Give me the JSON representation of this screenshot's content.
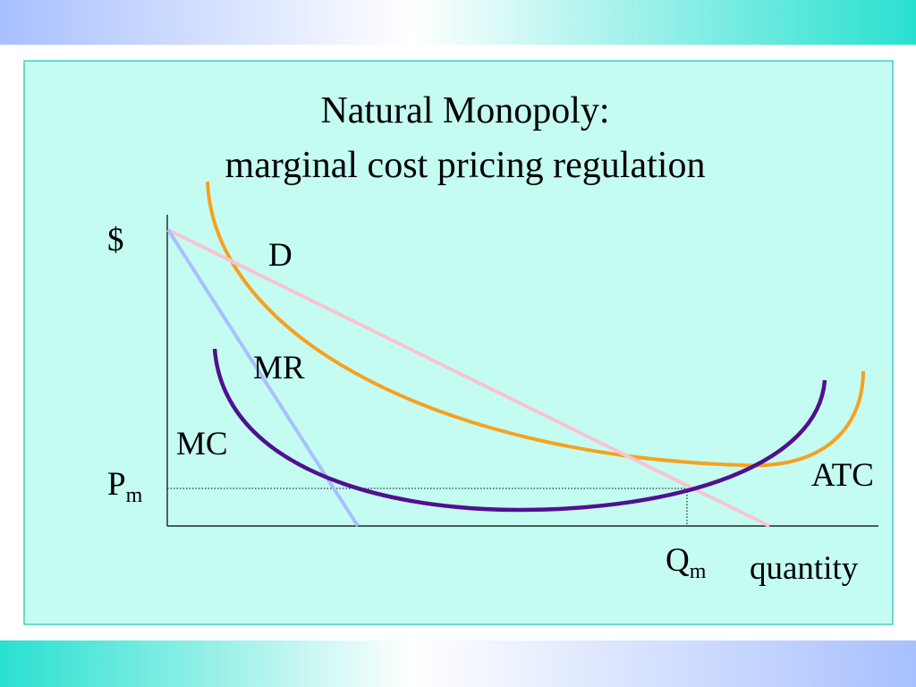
{
  "title": {
    "line1": "Natural Monopoly:",
    "line2": "marginal cost pricing regulation"
  },
  "labels": {
    "y_axis": "$",
    "demand": "D",
    "marginal_revenue": "MR",
    "marginal_cost": "MC",
    "price": {
      "main": "P",
      "sub": "m"
    },
    "atc": "ATC",
    "quantity_mark": {
      "main": "Q",
      "sub": "m"
    },
    "x_axis": "quantity"
  }
}
